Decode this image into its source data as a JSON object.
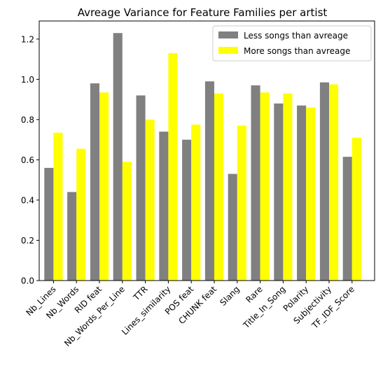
{
  "chart_data": {
    "type": "bar",
    "title": "Avreage Variance for Feature Families per artist",
    "xlabel": "",
    "ylabel": "",
    "ylim": [
      0,
      1.29
    ],
    "yticks": [
      0.0,
      0.2,
      0.4,
      0.6,
      0.8,
      1.0,
      1.2
    ],
    "ytick_labels": [
      "0.0",
      "0.2",
      "0.4",
      "0.6",
      "0.8",
      "1.0",
      "1.2"
    ],
    "grid": false,
    "legend_position": "top-right",
    "categories": [
      "Nb_Lines",
      "Nb_Words",
      "RID feat",
      "Nb_Words_Per_Line",
      "TTR",
      "Lines_similarity",
      "POS feat",
      "CHUNK feat",
      "Slang",
      "Rare",
      "Title_In_Song",
      "Polarity",
      "Subjectivity",
      "TF_IDF_Score"
    ],
    "series": [
      {
        "name": "Less songs than avreage",
        "color": "#808080",
        "values": [
          0.56,
          0.44,
          0.98,
          1.23,
          0.92,
          0.74,
          0.7,
          0.99,
          0.53,
          0.97,
          0.88,
          0.87,
          0.985,
          0.615
        ]
      },
      {
        "name": "More songs than avreage",
        "color": "#ffff00",
        "values": [
          0.735,
          0.655,
          0.935,
          0.59,
          0.8,
          1.13,
          0.775,
          0.93,
          0.77,
          0.935,
          0.93,
          0.86,
          0.975,
          0.71
        ]
      }
    ]
  }
}
